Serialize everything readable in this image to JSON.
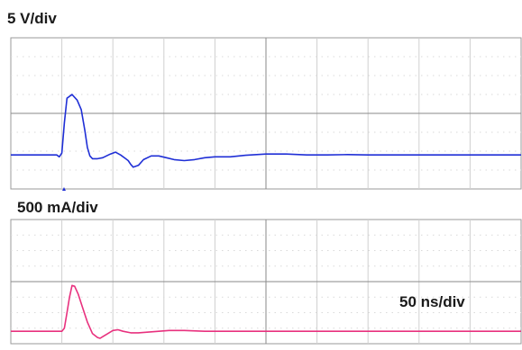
{
  "chart_data": [
    {
      "type": "line",
      "channel_label": "5 V/div",
      "color": "#1f2fd6",
      "xlim": [
        0,
        10
      ],
      "ylim": [
        -4,
        4
      ],
      "x_unit_label": "50 ns/div",
      "grid": true,
      "series": [
        {
          "x": [
            0,
            0.4,
            0.9,
            0.95,
            1.0,
            1.05,
            1.1,
            1.2,
            1.3,
            1.38,
            1.45,
            1.5,
            1.55,
            1.6,
            1.7,
            1.8,
            1.95,
            2.05,
            2.15,
            2.25,
            2.3,
            2.35,
            2.4,
            2.5,
            2.6,
            2.75,
            2.9,
            3.05,
            3.2,
            3.4,
            3.6,
            3.8,
            4.0,
            4.3,
            4.6,
            5.0,
            5.4,
            5.8,
            6.2,
            6.6,
            7.0,
            7.5,
            8.0,
            8.5,
            9.0,
            9.5,
            10.0
          ],
          "y": [
            -2.2,
            -2.2,
            -2.2,
            -2.3,
            -2.1,
            -0.5,
            0.8,
            1.0,
            0.7,
            0.2,
            -0.9,
            -1.8,
            -2.25,
            -2.4,
            -2.4,
            -2.35,
            -2.15,
            -2.05,
            -2.2,
            -2.4,
            -2.5,
            -2.7,
            -2.85,
            -2.75,
            -2.45,
            -2.25,
            -2.25,
            -2.35,
            -2.45,
            -2.5,
            -2.45,
            -2.35,
            -2.3,
            -2.3,
            -2.22,
            -2.15,
            -2.15,
            -2.2,
            -2.2,
            -2.18,
            -2.2,
            -2.2,
            -2.2,
            -2.2,
            -2.2,
            -2.2,
            -2.2
          ]
        }
      ]
    },
    {
      "type": "line",
      "channel_label": "500 mA/div",
      "color": "#e8317e",
      "xlim": [
        0,
        10
      ],
      "ylim": [
        -4,
        4
      ],
      "x_unit_label": "50 ns/div",
      "grid": true,
      "series": [
        {
          "x": [
            0,
            0.5,
            1.0,
            1.05,
            1.1,
            1.15,
            1.2,
            1.25,
            1.32,
            1.4,
            1.5,
            1.6,
            1.7,
            1.75,
            1.8,
            1.9,
            2.0,
            2.1,
            2.2,
            2.35,
            2.5,
            2.7,
            2.9,
            3.1,
            3.4,
            3.8,
            4.2,
            4.6,
            5.0,
            5.5,
            6.0,
            6.5,
            7.0,
            7.5,
            8.0,
            8.5,
            9.0,
            9.5,
            10.0
          ],
          "y": [
            -3.2,
            -3.2,
            -3.2,
            -3.0,
            -2.0,
            -1.0,
            -0.25,
            -0.3,
            -0.8,
            -1.6,
            -2.6,
            -3.35,
            -3.6,
            -3.65,
            -3.55,
            -3.35,
            -3.15,
            -3.1,
            -3.2,
            -3.3,
            -3.3,
            -3.25,
            -3.2,
            -3.15,
            -3.15,
            -3.2,
            -3.2,
            -3.2,
            -3.2,
            -3.2,
            -3.2,
            -3.2,
            -3.2,
            -3.2,
            -3.2,
            -3.2,
            -3.2,
            -3.2,
            -3.2
          ]
        }
      ]
    }
  ],
  "labels": {
    "voltage_scale": "5 V/div",
    "current_scale": "500 mA/div",
    "time_scale": "50 ns/div"
  }
}
